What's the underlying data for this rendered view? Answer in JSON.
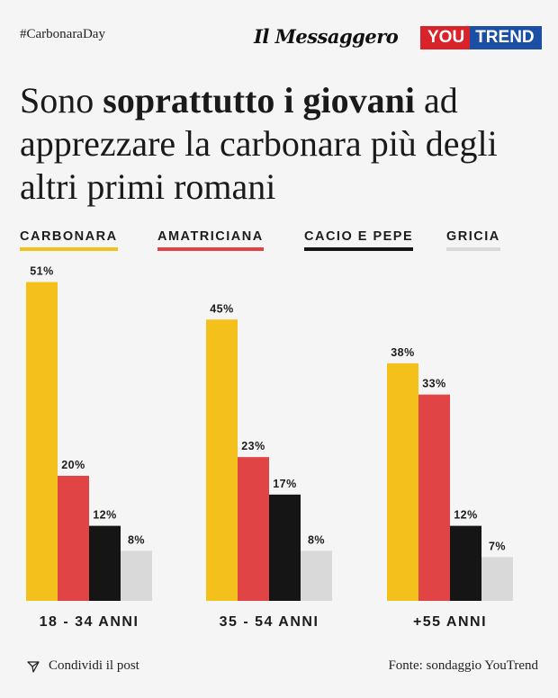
{
  "header": {
    "hashtag": "#CarbonaraDay",
    "logo_messaggero": "Il Messaggero",
    "logo_you": "YOU",
    "logo_trend": "TREND"
  },
  "title": {
    "part1": "Sono ",
    "bold": "soprattutto i giovani",
    "part2": " ad apprezzare la carbonara più degli altri primi romani"
  },
  "colors": {
    "carbonara": "#f4c11c",
    "amatriciana": "#e04444",
    "cacio_e_pepe": "#151515",
    "gricia": "#d9d9d9"
  },
  "chart_data": {
    "type": "bar",
    "title": "Sono soprattutto i giovani ad apprezzare la carbonara più degli altri primi romani",
    "categories": [
      "18 - 34 ANNI",
      "35 - 54 ANNI",
      "+55 ANNI"
    ],
    "series": [
      {
        "name": "CARBONARA",
        "values": [
          51,
          45,
          38
        ],
        "labels": [
          "51%",
          "45%",
          "38%"
        ],
        "color": "#f4c11c"
      },
      {
        "name": "AMATRICIANA",
        "values": [
          20,
          23,
          33
        ],
        "labels": [
          "20%",
          "23%",
          "33%"
        ],
        "color": "#e04444"
      },
      {
        "name": "CACIO E PEPE",
        "values": [
          12,
          17,
          12
        ],
        "labels": [
          "12%",
          "17%",
          "12%"
        ],
        "color": "#151515"
      },
      {
        "name": "GRICIA",
        "values": [
          8,
          8,
          7
        ],
        "labels": [
          "8%",
          "8%",
          "7%"
        ],
        "color": "#d9d9d9"
      }
    ],
    "legend_position": "top",
    "grid": false
  },
  "footer": {
    "share": "Condividi il post",
    "share_icon": "send-icon",
    "source": "Fonte: sondaggio YouTrend"
  }
}
